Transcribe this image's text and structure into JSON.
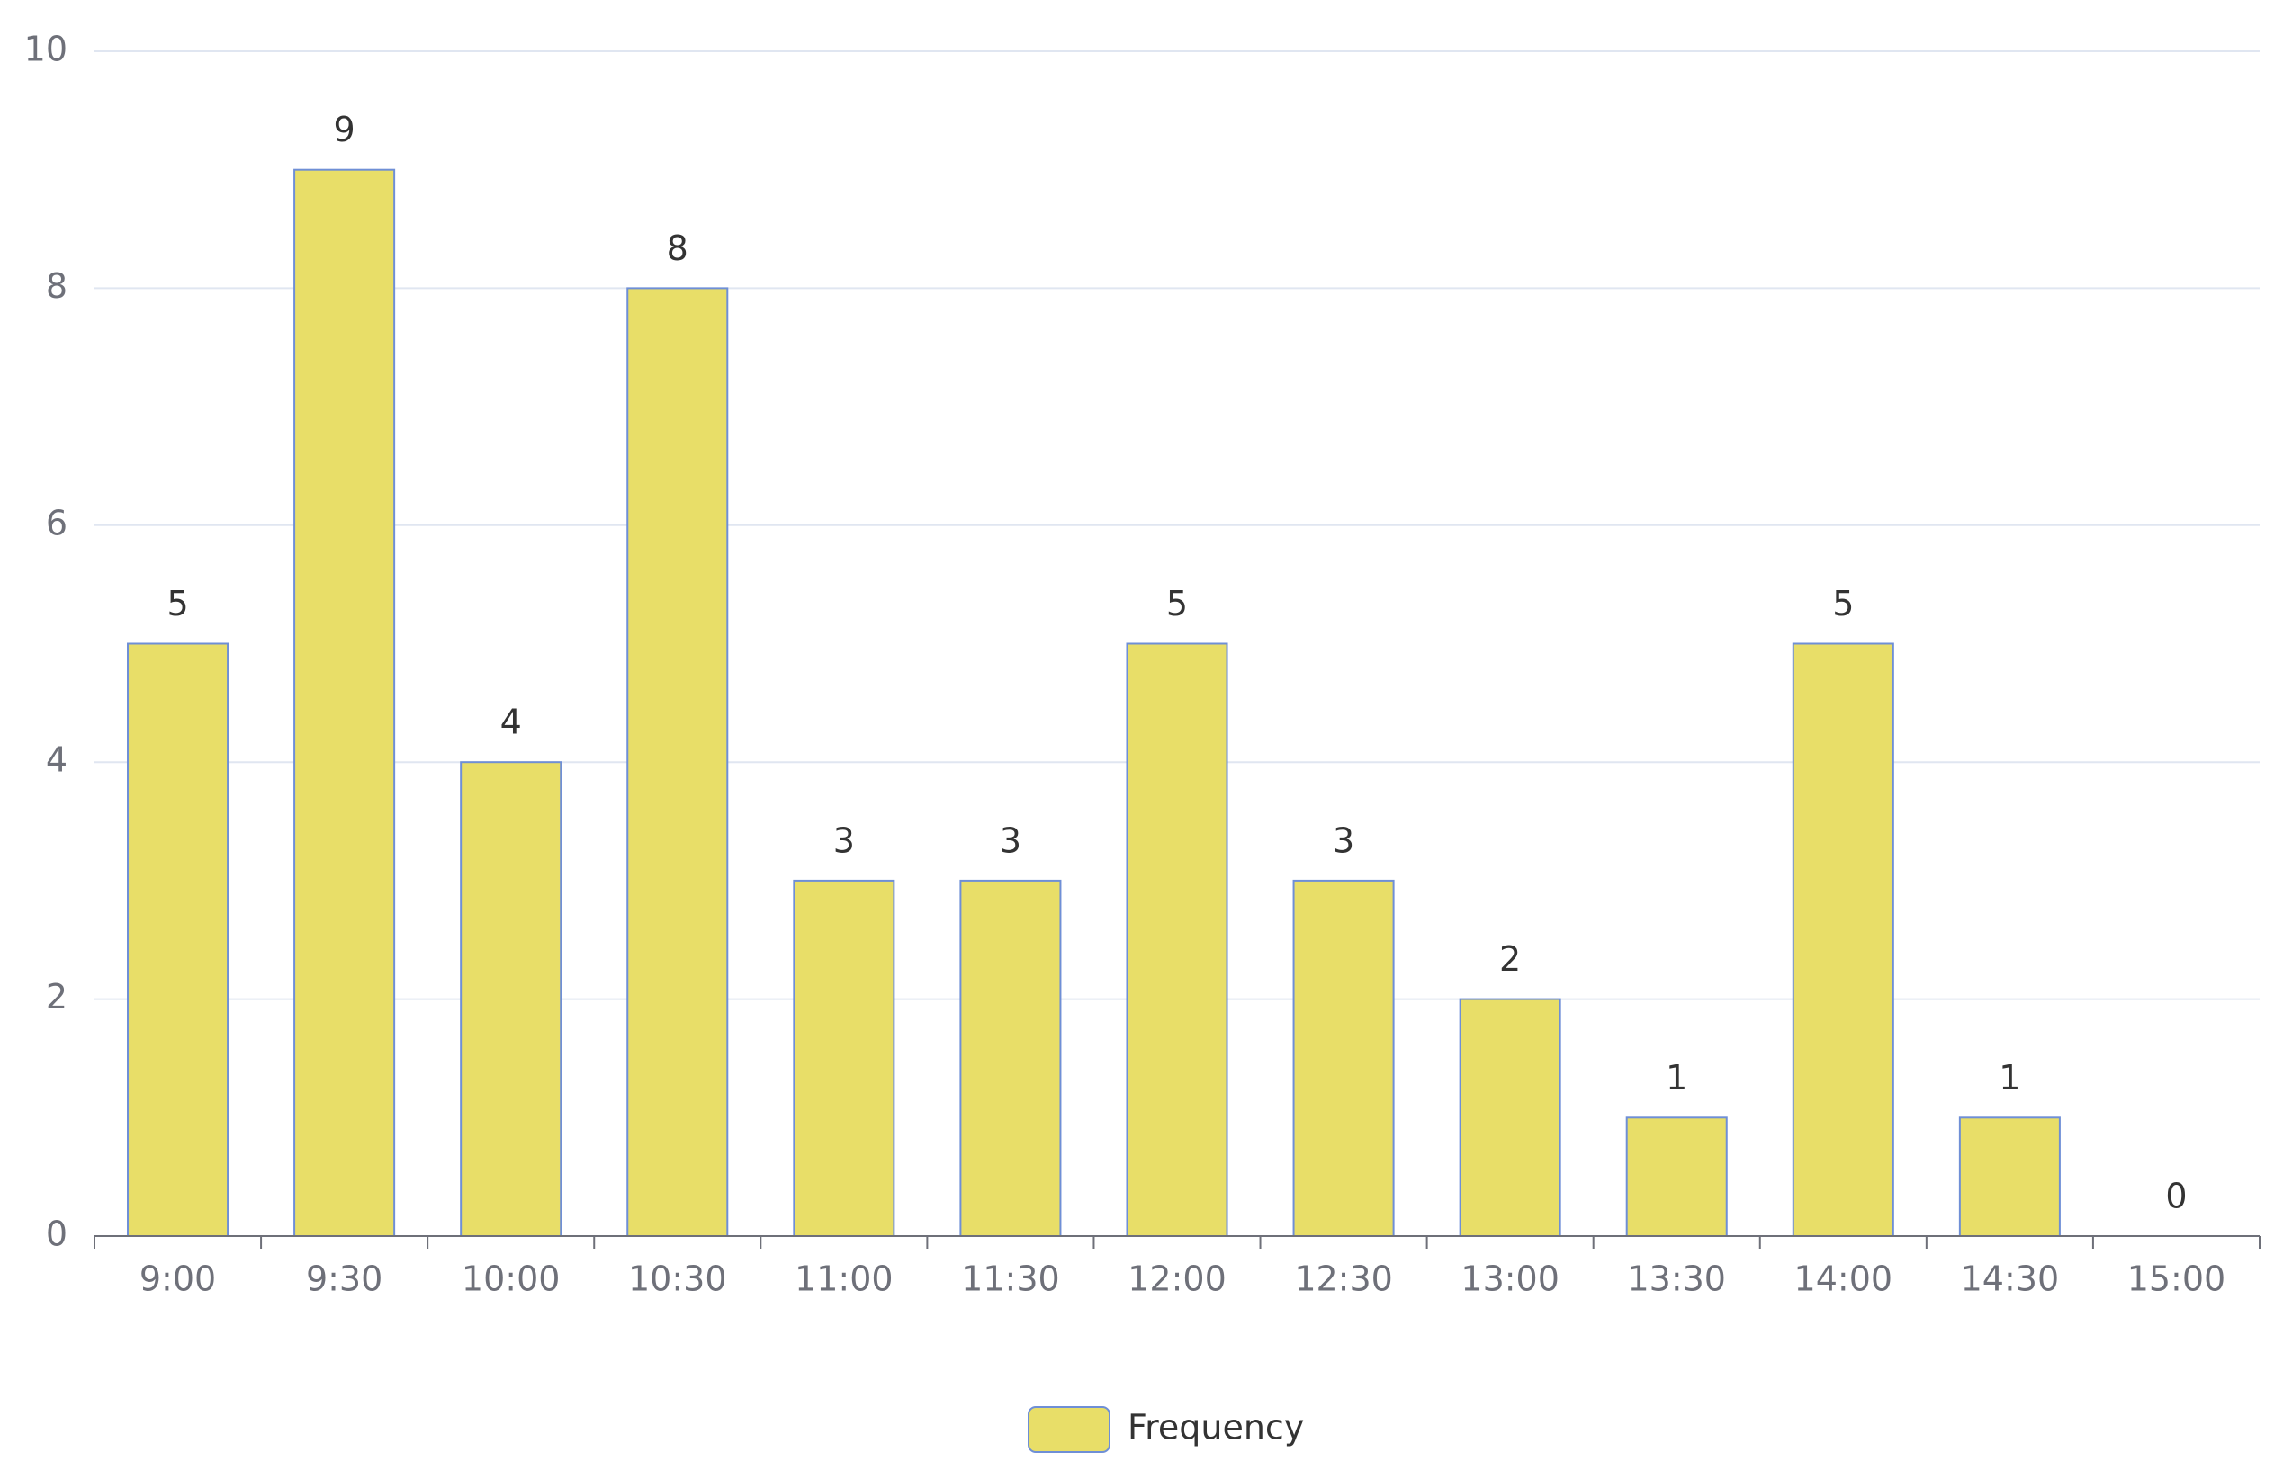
{
  "chart_data": {
    "type": "bar",
    "categories": [
      "9:00",
      "9:30",
      "10:00",
      "10:30",
      "11:00",
      "11:30",
      "12:00",
      "12:30",
      "13:00",
      "13:30",
      "14:00",
      "14:30",
      "15:00"
    ],
    "series": [
      {
        "name": "Frequency",
        "color": "#e8de68",
        "edgecolor": "#6f8fd6",
        "values": [
          5,
          9,
          4,
          8,
          3,
          3,
          5,
          3,
          2,
          1,
          5,
          1,
          0
        ]
      }
    ],
    "ylim": [
      0,
      10
    ],
    "yticks": [
      0,
      2,
      4,
      6,
      8,
      10
    ],
    "grid": true,
    "legend": "bottom",
    "data_labels": true
  }
}
